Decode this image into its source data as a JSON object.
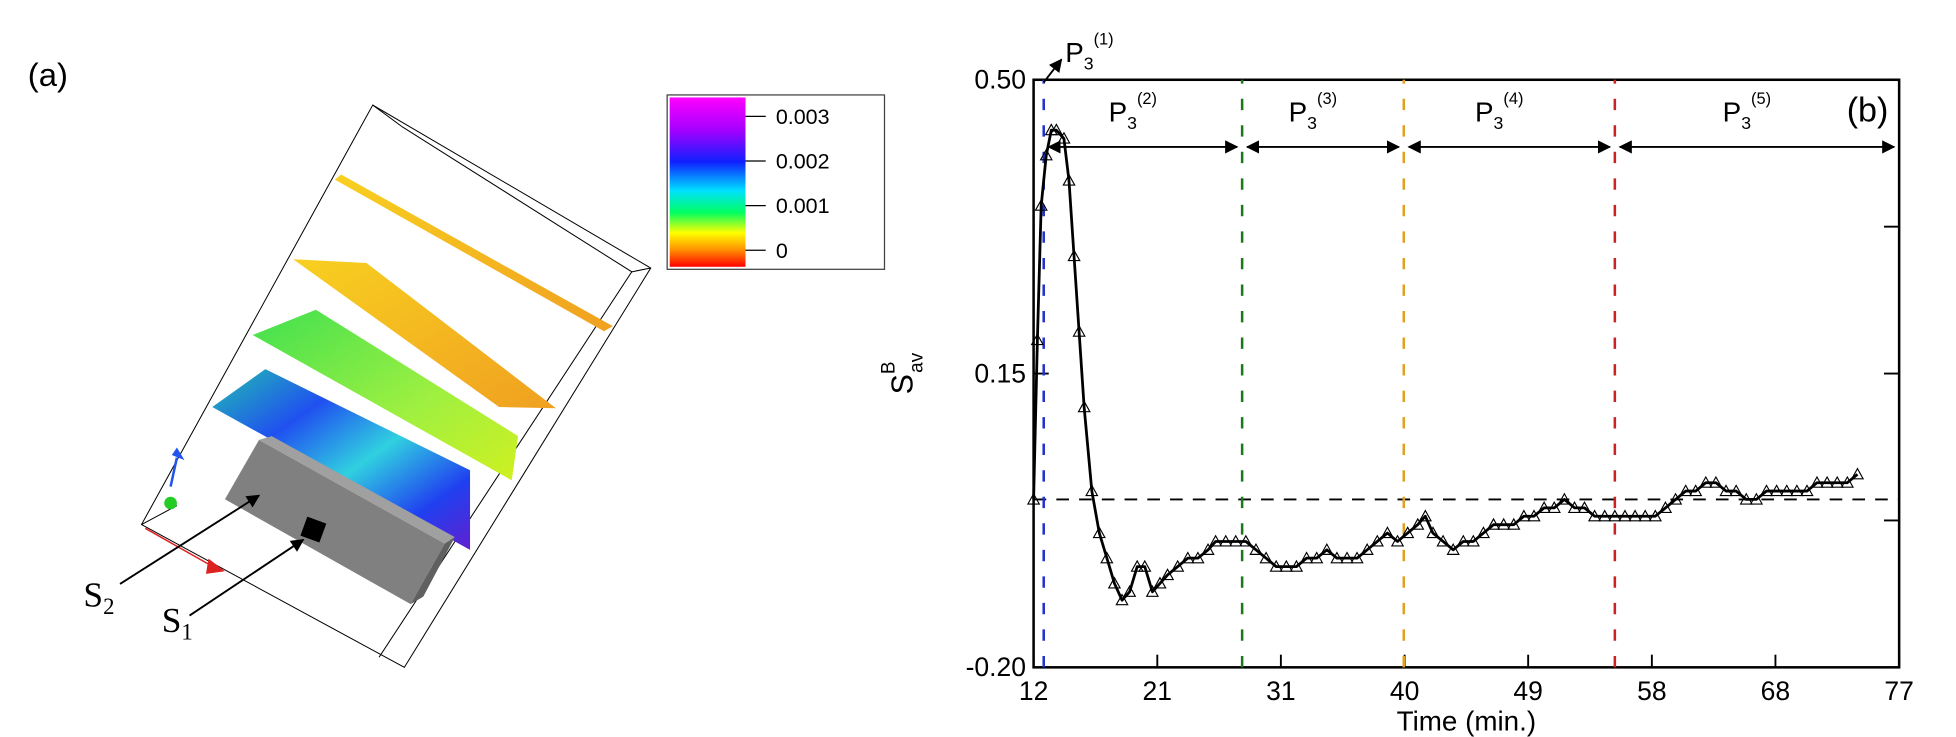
{
  "panel_a": {
    "label": "(a)",
    "colorbar_ticks": [
      "0.003",
      "0.002",
      "0.001",
      "0"
    ],
    "S2": {
      "main": "S",
      "sub": "2"
    },
    "S1": {
      "main": "S",
      "sub": "1"
    }
  },
  "chart_data": {
    "type": "line",
    "panel_label": "(b)",
    "xlabel": "Time (min.)",
    "ylabel": {
      "main": "S",
      "sup": "B",
      "sub": "av"
    },
    "xlim": [
      12,
      77
    ],
    "xticks": [
      12,
      {
        "value": 21.29,
        "label": "21"
      },
      {
        "value": 30.57,
        "label": "31"
      },
      {
        "value": 39.86,
        "label": "40"
      },
      {
        "value": 49.14,
        "label": "49"
      },
      {
        "value": 58.43,
        "label": "58"
      },
      {
        "value": 67.71,
        "label": "68"
      },
      77
    ],
    "ylim": [
      -0.2,
      0.5
    ],
    "yticks": [
      {
        "value": -0.2,
        "label": "-0.20"
      },
      {
        "value": 0.15,
        "label": "0.15"
      },
      {
        "value": 0.5,
        "label": "0.50"
      }
    ],
    "minor_yticks": [
      -0.025,
      0.325
    ],
    "color": "#000000",
    "x": [
      12.0,
      12.28,
      12.57,
      12.95,
      13.33,
      13.71,
      14.28,
      14.66,
      15.04,
      15.42,
      15.8,
      16.37,
      16.93,
      17.5,
      18.07,
      18.64,
      19.21,
      19.78,
      20.35,
      20.92,
      21.49,
      22.06,
      22.82,
      23.58,
      24.34,
      25.1,
      25.67,
      26.43,
      27.18,
      27.94,
      28.7,
      29.46,
      30.22,
      30.98,
      31.74,
      32.5,
      33.26,
      34.02,
      34.78,
      35.54,
      36.29,
      37.05,
      37.81,
      38.57,
      39.33,
      40.09,
      40.85,
      41.42,
      41.99,
      42.75,
      43.51,
      44.27,
      45.02,
      45.78,
      46.54,
      47.3,
      48.06,
      48.82,
      49.58,
      50.34,
      51.1,
      51.86,
      52.62,
      53.37,
      54.13,
      54.89,
      55.65,
      56.41,
      57.17,
      57.93,
      58.69,
      59.45,
      60.21,
      60.97,
      61.72,
      62.48,
      63.24,
      64.0,
      64.76,
      65.52,
      66.28,
      67.04,
      67.8,
      68.56,
      69.32,
      70.08,
      70.83,
      71.59,
      72.35,
      73.11,
      73.87
    ],
    "values": [
      0.0,
      0.19,
      0.35,
      0.41,
      0.44,
      0.44,
      0.43,
      0.38,
      0.29,
      0.2,
      0.11,
      0.01,
      -0.04,
      -0.07,
      -0.1,
      -0.12,
      -0.11,
      -0.08,
      -0.08,
      -0.11,
      -0.1,
      -0.09,
      -0.08,
      -0.07,
      -0.07,
      -0.06,
      -0.05,
      -0.05,
      -0.05,
      -0.05,
      -0.06,
      -0.07,
      -0.08,
      -0.08,
      -0.08,
      -0.07,
      -0.07,
      -0.06,
      -0.07,
      -0.07,
      -0.07,
      -0.06,
      -0.05,
      -0.04,
      -0.05,
      -0.04,
      -0.03,
      -0.02,
      -0.04,
      -0.05,
      -0.06,
      -0.05,
      -0.05,
      -0.04,
      -0.03,
      -0.03,
      -0.03,
      -0.02,
      -0.02,
      -0.01,
      -0.01,
      0.0,
      -0.01,
      -0.01,
      -0.02,
      -0.02,
      -0.02,
      -0.02,
      -0.02,
      -0.02,
      -0.02,
      -0.01,
      0.0,
      0.01,
      0.01,
      0.02,
      0.02,
      0.01,
      0.01,
      0.0,
      0.0,
      0.01,
      0.01,
      0.01,
      0.01,
      0.01,
      0.02,
      0.02,
      0.02,
      0.02,
      0.03
    ],
    "hline": 0,
    "vlines": [
      {
        "x": 12.76,
        "color": "#2233cc"
      },
      {
        "x": 27.66,
        "color": "#1a7a1a"
      },
      {
        "x": 39.8,
        "color": "#e0a020"
      },
      {
        "x": 55.65,
        "color": "#cc2222"
      }
    ],
    "arrow_y": 0.42,
    "phases": [
      {
        "main": "P",
        "sub": "3",
        "sup": "(1)"
      },
      {
        "main": "P",
        "sub": "3",
        "sup": "(2)"
      },
      {
        "main": "P",
        "sub": "3",
        "sup": "(3)"
      },
      {
        "main": "P",
        "sub": "3",
        "sup": "(4)"
      },
      {
        "main": "P",
        "sub": "3",
        "sup": "(5)"
      }
    ]
  }
}
